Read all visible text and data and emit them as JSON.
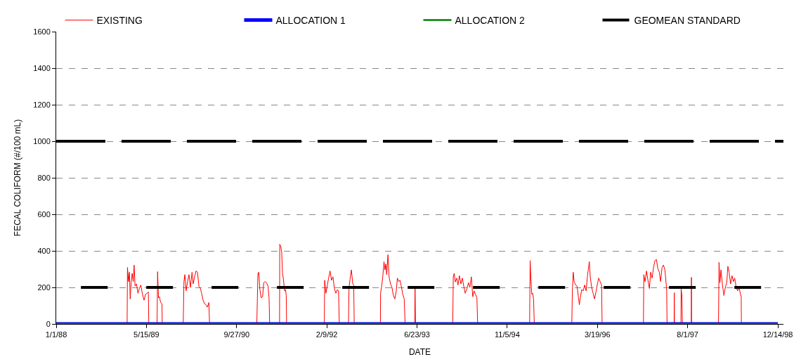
{
  "chart_data": {
    "type": "line",
    "xlabel": "DATE",
    "ylabel": "FECAL COLIFORM (#/100 mL)",
    "xlim": [
      "1988-01-01",
      "1999-01-14"
    ],
    "xticks": [
      {
        "value": "1988-01-01",
        "label": "1/1/88"
      },
      {
        "value": "1989-05-15",
        "label": "5/15/89"
      },
      {
        "value": "1990-09-27",
        "label": "9/27/90"
      },
      {
        "value": "1992-02-09",
        "label": "2/9/92"
      },
      {
        "value": "1993-06-23",
        "label": "6/23/93"
      },
      {
        "value": "1994-11-05",
        "label": "11/5/94"
      },
      {
        "value": "1996-03-19",
        "label": "3/19/96"
      },
      {
        "value": "1997-08-01",
        "label": "8/1/97"
      },
      {
        "value": "1998-12-14",
        "label": "12/14/98"
      }
    ],
    "ylim": [
      0,
      1600
    ],
    "yticks": [
      0,
      200,
      400,
      600,
      800,
      1000,
      1200,
      1400,
      1600
    ],
    "grid": "y",
    "legend": "top",
    "marker": "none",
    "ref_lines": [
      {
        "axis": "y",
        "value": 1000,
        "color": "#000000",
        "line_style": "dashed"
      }
    ],
    "series": [
      {
        "name": "EXISTING",
        "color": "#ff0000",
        "line_style": "solid",
        "x": [
          "1988-01-01",
          "1989-01-28",
          "1989-01-30",
          "1989-02-05",
          "1989-02-10",
          "1989-02-14",
          "1989-02-19",
          "1989-02-25",
          "1989-03-03",
          "1989-03-08",
          "1989-03-13",
          "1989-03-21",
          "1989-03-29",
          "1989-04-06",
          "1989-04-14",
          "1989-04-23",
          "1989-05-02",
          "1989-05-10",
          "1989-05-18",
          "1989-05-26",
          "1989-05-28",
          "1989-07-13",
          "1989-07-16",
          "1989-07-21",
          "1989-07-26",
          "1989-08-02",
          "1989-08-09",
          "1989-08-11",
          "1989-12-05",
          "1989-12-09",
          "1989-12-14",
          "1989-12-21",
          "1989-12-29",
          "1990-01-06",
          "1990-01-14",
          "1990-01-23",
          "1990-01-29",
          "1990-02-06",
          "1990-02-14",
          "1990-02-22",
          "1990-03-02",
          "1990-03-10",
          "1990-03-17",
          "1990-03-25",
          "1990-04-02",
          "1990-04-10",
          "1990-04-18",
          "1990-04-26",
          "1990-04-30",
          "1991-01-17",
          "1991-01-23",
          "1991-01-28",
          "1991-02-03",
          "1991-02-10",
          "1991-02-18",
          "1991-02-24",
          "1991-03-04",
          "1991-03-12",
          "1991-03-20",
          "1991-03-26",
          "1991-03-29",
          "1991-05-23",
          "1991-05-24",
          "1991-05-30",
          "1991-06-04",
          "1991-06-08",
          "1991-06-14",
          "1991-06-20",
          "1991-06-25",
          "1991-06-29",
          "1991-07-01",
          "1992-01-26",
          "1992-01-28",
          "1992-02-04",
          "1992-02-12",
          "1992-02-19",
          "1992-02-27",
          "1992-03-06",
          "1992-03-14",
          "1992-03-22",
          "1992-03-30",
          "1992-04-07",
          "1992-04-14",
          "1992-04-18",
          "1992-06-08",
          "1992-06-11",
          "1992-06-17",
          "1992-06-24",
          "1992-06-28",
          "1992-07-02",
          "1992-07-07",
          "1992-07-10",
          "1992-12-02",
          "1992-12-03",
          "1992-12-09",
          "1992-12-15",
          "1992-12-22",
          "1992-12-27",
          "1993-01-01",
          "1993-01-06",
          "1993-01-13",
          "1993-01-19",
          "1993-01-27",
          "1993-02-04",
          "1993-02-12",
          "1993-02-20",
          "1993-02-28",
          "1993-03-06",
          "1993-03-13",
          "1993-03-21",
          "1993-03-29",
          "1993-04-05",
          "1993-04-13",
          "1993-04-18",
          "1993-06-10",
          "1993-06-12",
          "1993-06-15",
          "1994-01-07",
          "1994-01-10",
          "1994-01-15",
          "1994-01-21",
          "1994-01-29",
          "1994-02-05",
          "1994-02-13",
          "1994-02-21",
          "1994-03-01",
          "1994-03-09",
          "1994-03-17",
          "1994-03-27",
          "1994-04-04",
          "1994-04-12",
          "1994-04-20",
          "1994-04-28",
          "1994-05-05",
          "1994-05-13",
          "1994-05-21",
          "1994-05-25",
          "1995-03-09",
          "1995-03-12",
          "1995-03-16",
          "1995-03-21",
          "1995-03-26",
          "1995-03-31",
          "1995-04-04",
          "1995-10-29",
          "1995-11-01",
          "1995-11-06",
          "1995-11-11",
          "1995-11-19",
          "1995-11-27",
          "1995-12-05",
          "1995-12-10",
          "1995-12-15",
          "1995-12-23",
          "1995-12-31",
          "1996-01-08",
          "1996-01-16",
          "1996-01-24",
          "1996-02-03",
          "1996-02-08",
          "1996-02-16",
          "1996-02-24",
          "1996-03-03",
          "1996-03-11",
          "1996-03-19",
          "1996-03-26",
          "1996-04-03",
          "1996-04-11",
          "1996-04-14",
          "1996-11-29",
          "1996-12-01",
          "1996-12-08",
          "1996-12-16",
          "1996-12-24",
          "1997-01-01",
          "1997-01-08",
          "1997-01-16",
          "1997-01-24",
          "1997-02-01",
          "1997-02-09",
          "1997-02-17",
          "1997-02-25",
          "1997-03-04",
          "1997-03-12",
          "1997-03-20",
          "1997-03-28",
          "1997-04-04",
          "1997-04-07",
          "1997-04-09",
          "1997-05-18",
          "1997-05-19",
          "1997-05-20",
          "1997-06-25",
          "1997-06-26",
          "1997-06-30",
          "1997-07-03",
          "1997-08-21",
          "1997-08-22",
          "1997-08-23",
          "1998-01-19",
          "1998-01-22",
          "1998-01-27",
          "1998-02-02",
          "1998-02-10",
          "1998-02-18",
          "1998-02-26",
          "1998-03-06",
          "1998-03-12",
          "1998-03-19",
          "1998-03-27",
          "1998-04-04",
          "1998-04-12",
          "1998-04-19",
          "1998-04-27",
          "1998-05-05",
          "1998-05-13",
          "1998-05-21",
          "1998-05-25",
          "1998-05-26",
          "1998-12-14"
        ],
        "values": [
          0,
          0,
          309,
          232,
          283,
          137,
          219,
          277,
          232,
          322,
          207,
          219,
          168,
          194,
          213,
          162,
          130,
          162,
          168,
          175,
          0,
          0,
          286,
          143,
          149,
          117,
          111,
          0,
          0,
          232,
          270,
          181,
          232,
          270,
          200,
          283,
          219,
          258,
          290,
          283,
          207,
          194,
          168,
          130,
          111,
          105,
          92,
          117,
          0,
          0,
          277,
          283,
          188,
          143,
          149,
          226,
          232,
          226,
          207,
          140,
          0,
          0,
          436,
          424,
          392,
          283,
          239,
          181,
          188,
          156,
          0,
          0,
          239,
          168,
          213,
          251,
          290,
          239,
          258,
          194,
          168,
          188,
          181,
          0,
          0,
          200,
          245,
          296,
          258,
          219,
          213,
          0,
          0,
          168,
          207,
          258,
          341,
          296,
          328,
          270,
          379,
          258,
          219,
          200,
          156,
          137,
          181,
          251,
          232,
          239,
          200,
          162,
          137,
          0,
          0,
          196,
          0,
          0,
          258,
          277,
          230,
          251,
          213,
          264,
          219,
          251,
          207,
          168,
          194,
          226,
          200,
          258,
          149,
          181,
          162,
          143,
          0,
          0,
          347,
          251,
          162,
          168,
          137,
          0,
          0,
          181,
          283,
          232,
          213,
          207,
          143,
          105,
          143,
          188,
          181,
          213,
          181,
          264,
          341,
          258,
          200,
          168,
          137,
          175,
          219,
          251,
          232,
          213,
          0,
          0,
          270,
          232,
          290,
          239,
          194,
          283,
          251,
          309,
          347,
          353,
          302,
          283,
          232,
          309,
          322,
          296,
          219,
          179,
          0,
          0,
          171,
          0,
          0,
          191,
          162,
          0,
          0,
          255,
          0,
          0,
          337,
          226,
          296,
          213,
          156,
          200,
          226,
          315,
          283,
          219,
          264,
          232,
          251,
          200,
          181,
          200,
          162,
          149,
          0,
          0
        ]
      },
      {
        "name": "ALLOCATION 1",
        "color": "#0000ff",
        "line_style": "solid",
        "x": [
          "1988-01-01",
          "1998-12-14"
        ],
        "values": [
          0,
          0
        ]
      },
      {
        "name": "ALLOCATION 2",
        "color": "#008000",
        "line_style": "solid",
        "x": [
          "1988-01-01",
          "1998-12-14"
        ],
        "values": [
          0,
          0
        ]
      },
      {
        "name": "GEOMEAN STANDARD",
        "color": "#000000",
        "line_style": "dashed",
        "x": [
          "1988-05-17",
          "1998-10-13"
        ],
        "values": [
          200,
          200
        ]
      }
    ]
  }
}
